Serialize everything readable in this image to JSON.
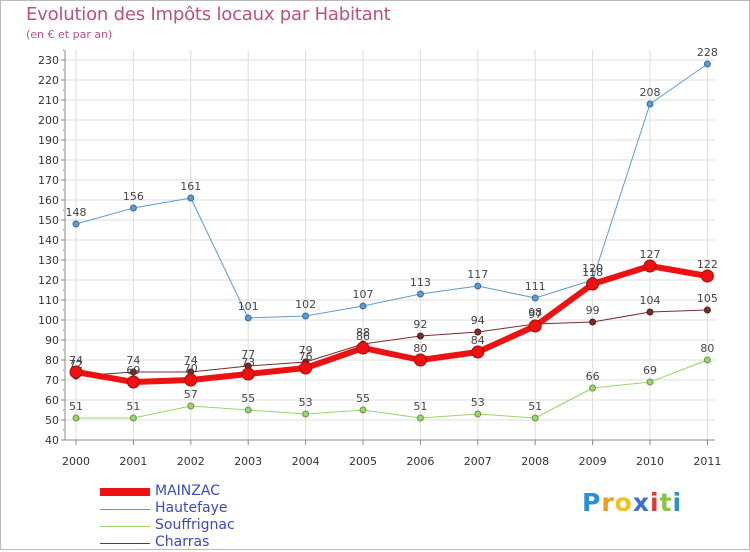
{
  "header": {
    "title": "Evolution des Impôts locaux par Habitant",
    "subtitle": "(en € et par an)"
  },
  "brand": {
    "letters": [
      "P",
      "r",
      "o",
      "x",
      "i",
      "t",
      "i"
    ],
    "colors": [
      "#2b8fd8",
      "#f29b1a",
      "#f2c21a",
      "#3b6fd8",
      "#e8362b",
      "#8cc63f",
      "#2b8fd8"
    ]
  },
  "chart_data": {
    "type": "line",
    "title": "Evolution des Impôts locaux par Habitant",
    "subtitle": "(en € et par an)",
    "xlabel": "",
    "ylabel": "",
    "ylim": [
      40,
      230
    ],
    "ytick_step": 10,
    "grid": true,
    "categories": [
      "2000",
      "2001",
      "2002",
      "2003",
      "2004",
      "2005",
      "2006",
      "2007",
      "2008",
      "2009",
      "2010",
      "2011"
    ],
    "yticks": [
      "40",
      "50",
      "60",
      "70",
      "80",
      "90",
      "100",
      "110",
      "120",
      "130",
      "140",
      "150",
      "160",
      "170",
      "180",
      "190",
      "200",
      "210",
      "220",
      "230"
    ],
    "legend_position": "bottom-left",
    "series": [
      {
        "name": "Hautefaye",
        "color": "#5b9bd5",
        "line_width": 1,
        "marker_radius": 3,
        "values": [
          148,
          156,
          161,
          101,
          102,
          107,
          113,
          117,
          111,
          120,
          208,
          228
        ],
        "labels": [
          "148",
          "156",
          "161",
          "101",
          "102",
          "107",
          "113",
          "117",
          "111",
          "120",
          "208",
          "228"
        ]
      },
      {
        "name": "Souffrignac",
        "color": "#99d56b",
        "line_width": 1,
        "marker_radius": 3,
        "values": [
          51,
          51,
          57,
          55,
          53,
          55,
          51,
          53,
          51,
          66,
          69,
          80
        ],
        "labels": [
          "51",
          "51",
          "57",
          "55",
          "53",
          "55",
          "51",
          "53",
          "51",
          "66",
          "69",
          "80"
        ]
      },
      {
        "name": "Charras",
        "color": "#7a2b2b",
        "line_width": 1,
        "marker_radius": 3,
        "values": [
          72,
          74,
          74,
          77,
          79,
          88,
          92,
          94,
          98,
          99,
          104,
          105
        ],
        "labels": [
          "72",
          "74",
          "74",
          "77",
          "79",
          "88",
          "92",
          "94",
          "98",
          "99",
          "104",
          "105"
        ]
      },
      {
        "name": "MAINZAC",
        "color": "#ee1111",
        "line_width": 6,
        "marker_radius": 6,
        "values": [
          74,
          69,
          70,
          73,
          76,
          86,
          80,
          84,
          97,
          118,
          127,
          122
        ],
        "labels": [
          "74",
          "69",
          "70",
          "73",
          "76",
          "86",
          "80",
          "84",
          "97",
          "118",
          "127",
          "122"
        ]
      }
    ],
    "legend_order": [
      "MAINZAC",
      "Hautefaye",
      "Souffrignac",
      "Charras"
    ]
  }
}
